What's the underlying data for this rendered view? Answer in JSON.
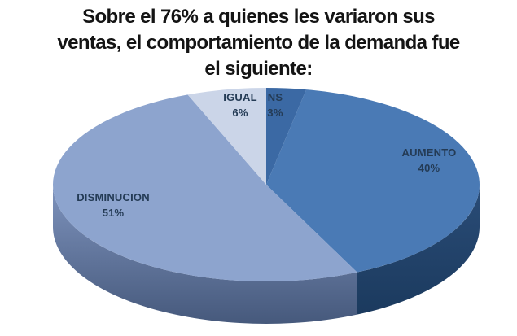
{
  "title_lines": [
    "Sobre el 76% a quienes les variaron sus",
    "ventas, el comportamiento de la demanda fue",
    "el siguiente:"
  ],
  "chart_data": {
    "type": "pie",
    "style": "3d",
    "title": "Sobre el 76% a quienes les variaron sus ventas, el comportamiento de la demanda fue el siguiente:",
    "legend_position": "none",
    "data_labels": "category name and percentage on slices",
    "start_angle_deg": 0,
    "direction": "clockwise",
    "categories": [
      "NS",
      "AUMENTO",
      "DISMINUCION",
      "IGUAL"
    ],
    "values": [
      3,
      40,
      51,
      6
    ],
    "label_color": "#243b55",
    "slices": [
      {
        "label": "NS",
        "value": 3,
        "pct_label": "3%",
        "color": "#3b69a4"
      },
      {
        "label": "AUMENTO",
        "value": 40,
        "pct_label": "40%",
        "color": "#4a7ab5",
        "side_top": "#2a4c77",
        "side_bottom": "#1b3a5e"
      },
      {
        "label": "DISMINUCION",
        "value": 51,
        "pct_label": "51%",
        "color": "#8da4ce",
        "side_top": "#7e93bd",
        "side_bottom": "#46597c"
      },
      {
        "label": "IGUAL",
        "value": 6,
        "pct_label": "6%",
        "color": "#cbd5e8"
      }
    ]
  }
}
